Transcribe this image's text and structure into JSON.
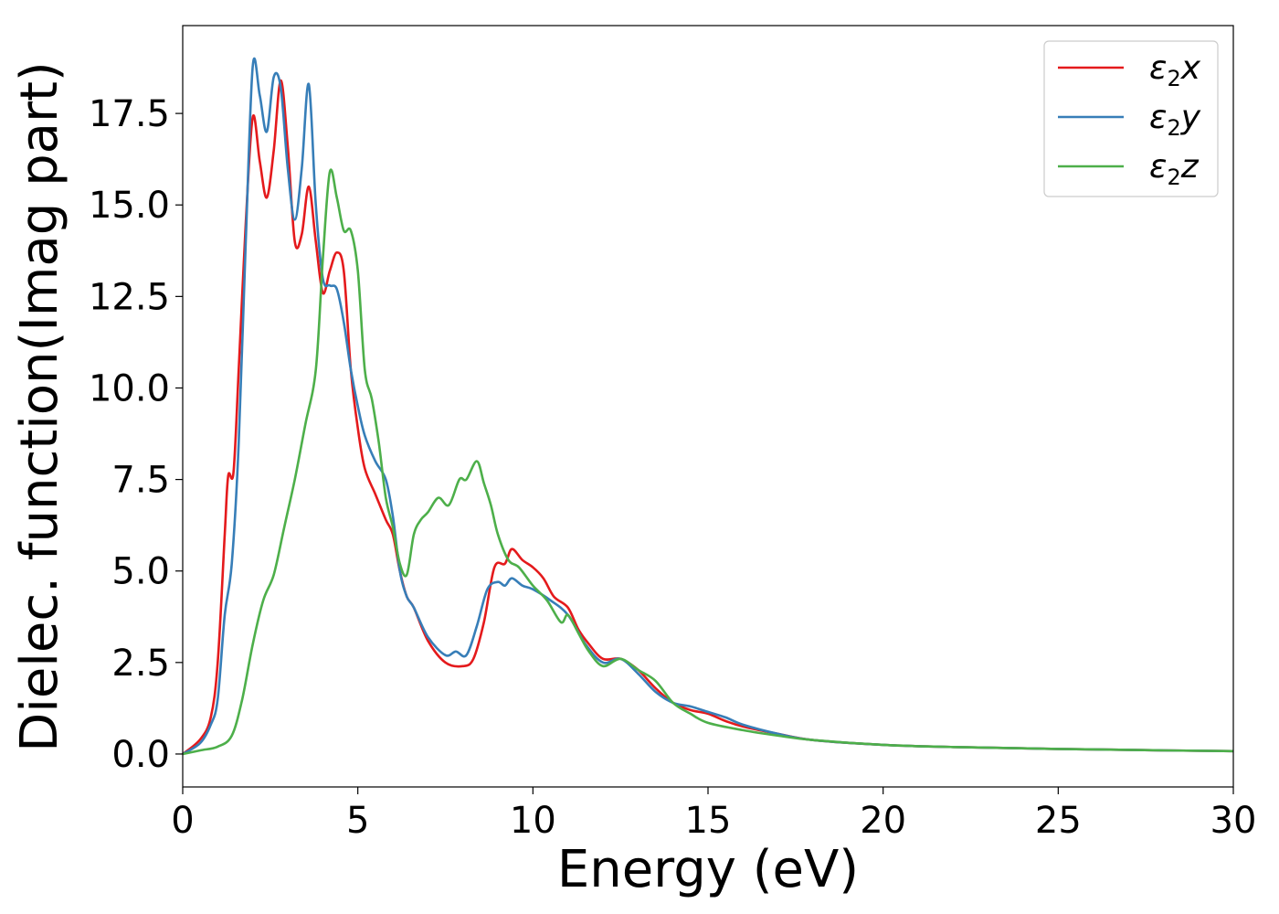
{
  "chart_data": {
    "type": "line",
    "title": "",
    "xlabel": "Energy (eV)",
    "ylabel": "Dielec. function(Imag part)",
    "xlim": [
      0,
      30
    ],
    "ylim": [
      -0.9,
      19.9
    ],
    "xticks": [
      0,
      5,
      10,
      15,
      20,
      25,
      30
    ],
    "xtick_labels": [
      "0",
      "5",
      "10",
      "15",
      "20",
      "25",
      "30"
    ],
    "yticks": [
      0,
      2.5,
      5,
      7.5,
      10,
      12.5,
      15,
      17.5
    ],
    "ytick_labels": [
      "0.0",
      "2.5",
      "5.0",
      "7.5",
      "10.0",
      "12.5",
      "15.0",
      "17.5"
    ],
    "grid": false,
    "legend_position": "top-right",
    "series": [
      {
        "name": "ε2x",
        "color": "#e41a1c",
        "x": [
          0,
          0.5,
          0.8,
          1.0,
          1.2,
          1.3,
          1.45,
          1.6,
          1.8,
          2.0,
          2.2,
          2.4,
          2.6,
          2.8,
          3.0,
          3.2,
          3.4,
          3.6,
          3.8,
          4.0,
          4.2,
          4.4,
          4.6,
          4.8,
          5.0,
          5.2,
          5.5,
          5.8,
          6.0,
          6.2,
          6.4,
          6.6,
          7.0,
          7.5,
          8.0,
          8.3,
          8.6,
          8.9,
          9.2,
          9.4,
          9.7,
          10.0,
          10.3,
          10.6,
          11.0,
          11.3,
          11.6,
          12.0,
          12.5,
          13.0,
          13.5,
          14.0,
          14.5,
          15.0,
          15.5,
          16.0,
          17.0,
          18.0,
          20.0,
          22.0,
          25.0,
          28.0,
          30.0
        ],
        "y": [
          0,
          0.4,
          1.0,
          2.5,
          6.0,
          7.6,
          7.7,
          10.5,
          14.5,
          17.4,
          16.2,
          15.2,
          16.5,
          18.4,
          16.6,
          14.0,
          14.2,
          15.5,
          14.0,
          12.6,
          13.2,
          13.7,
          13.2,
          10.5,
          8.9,
          7.8,
          7.1,
          6.4,
          6.0,
          5.0,
          4.3,
          4.0,
          3.1,
          2.5,
          2.4,
          2.6,
          3.6,
          5.1,
          5.2,
          5.6,
          5.3,
          5.1,
          4.8,
          4.3,
          4.0,
          3.4,
          3.0,
          2.6,
          2.6,
          2.3,
          1.8,
          1.4,
          1.2,
          1.1,
          0.9,
          0.75,
          0.55,
          0.38,
          0.25,
          0.19,
          0.14,
          0.1,
          0.08
        ]
      },
      {
        "name": "ε2y",
        "color": "#377eb8",
        "x": [
          0,
          0.5,
          0.8,
          1.0,
          1.2,
          1.4,
          1.6,
          1.8,
          2.0,
          2.2,
          2.4,
          2.6,
          2.8,
          3.0,
          3.2,
          3.4,
          3.6,
          3.8,
          4.0,
          4.2,
          4.4,
          4.6,
          4.8,
          5.0,
          5.2,
          5.5,
          5.8,
          6.0,
          6.2,
          6.4,
          6.6,
          7.0,
          7.5,
          7.8,
          8.1,
          8.4,
          8.7,
          9.0,
          9.2,
          9.4,
          9.7,
          10.0,
          10.5,
          11.0,
          11.5,
          12.0,
          12.5,
          13.0,
          13.5,
          14.0,
          14.5,
          15.0,
          15.5,
          16.0,
          17.0,
          18.0,
          20.0,
          22.0,
          25.0,
          28.0,
          30.0
        ],
        "y": [
          0,
          0.3,
          0.8,
          1.5,
          3.8,
          5.2,
          8.5,
          14.0,
          18.8,
          18.0,
          17.0,
          18.5,
          18.2,
          16.0,
          14.6,
          16.0,
          18.3,
          15.0,
          13.0,
          12.8,
          12.7,
          11.8,
          10.5,
          9.5,
          8.7,
          8.0,
          7.5,
          6.5,
          5.0,
          4.3,
          4.0,
          3.2,
          2.7,
          2.8,
          2.7,
          3.5,
          4.5,
          4.7,
          4.6,
          4.8,
          4.6,
          4.5,
          4.2,
          3.8,
          3.0,
          2.5,
          2.6,
          2.2,
          1.7,
          1.4,
          1.3,
          1.15,
          1.0,
          0.8,
          0.55,
          0.38,
          0.25,
          0.19,
          0.14,
          0.1,
          0.08
        ]
      },
      {
        "name": "ε2z",
        "color": "#4daf4a",
        "x": [
          0,
          0.5,
          1.0,
          1.4,
          1.7,
          2.0,
          2.3,
          2.6,
          2.9,
          3.2,
          3.5,
          3.8,
          4.0,
          4.2,
          4.4,
          4.6,
          4.8,
          5.0,
          5.2,
          5.4,
          5.6,
          5.8,
          6.0,
          6.2,
          6.4,
          6.6,
          6.8,
          7.0,
          7.3,
          7.6,
          7.9,
          8.1,
          8.4,
          8.6,
          8.8,
          9.0,
          9.3,
          9.6,
          10.0,
          10.4,
          10.8,
          11.0,
          11.3,
          11.6,
          12.0,
          12.5,
          13.0,
          13.5,
          14.0,
          14.5,
          15.0,
          16.0,
          17.0,
          18.0,
          20.0,
          22.0,
          25.0,
          28.0,
          30.0
        ],
        "y": [
          0,
          0.1,
          0.2,
          0.5,
          1.5,
          3.0,
          4.2,
          4.9,
          6.2,
          7.5,
          9.0,
          10.5,
          13.5,
          15.9,
          15.2,
          14.3,
          14.3,
          13.2,
          10.5,
          9.7,
          8.5,
          7.0,
          6.2,
          5.2,
          4.9,
          6.0,
          6.4,
          6.6,
          7.0,
          6.8,
          7.5,
          7.5,
          8.0,
          7.4,
          6.8,
          6.0,
          5.3,
          5.1,
          4.6,
          4.2,
          3.6,
          3.8,
          3.3,
          2.8,
          2.4,
          2.6,
          2.3,
          2.0,
          1.4,
          1.1,
          0.85,
          0.65,
          0.5,
          0.38,
          0.25,
          0.19,
          0.14,
          0.1,
          0.08
        ]
      }
    ]
  },
  "legend": {
    "items": [
      {
        "label": "ε2x",
        "base": "ε",
        "sub": "2",
        "var": "x",
        "color": "#e41a1c"
      },
      {
        "label": "ε2y",
        "base": "ε",
        "sub": "2",
        "var": "y",
        "color": "#377eb8"
      },
      {
        "label": "ε2z",
        "base": "ε",
        "sub": "2",
        "var": "z",
        "color": "#4daf4a"
      }
    ]
  }
}
